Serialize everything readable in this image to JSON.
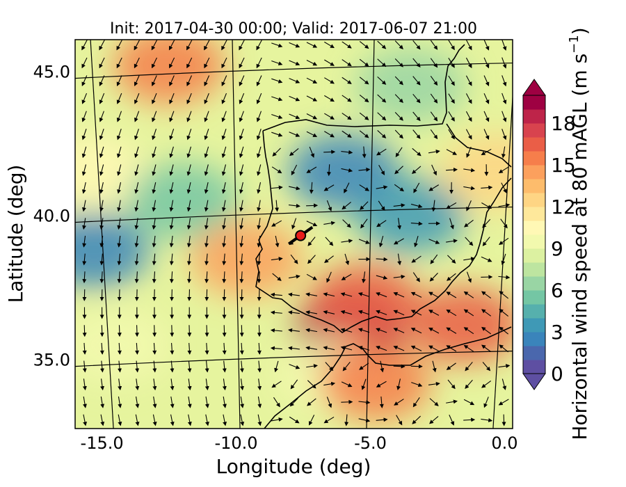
{
  "title": "Init: 2017-04-30 00:00; Valid: 2017-06-07 21:00",
  "xaxis": {
    "label": "Longitude (deg)",
    "range": [
      -16.0,
      0.3
    ],
    "ticks": [
      -15.0,
      -10.0,
      -5.0,
      0.0
    ],
    "tick_labels": [
      "-15.0",
      "-10.0",
      "-5.0",
      "0.0"
    ]
  },
  "yaxis": {
    "label": "Latitude (deg)",
    "range": [
      32.6,
      46.1
    ],
    "ticks": [
      35.0,
      40.0,
      45.0
    ],
    "tick_labels": [
      "35.0",
      "40.0",
      "45.0"
    ]
  },
  "colorbar": {
    "label_main": "Horizontal wind speed at 80 mAGL (m s",
    "label_exp": "−1",
    "label_close": ")",
    "min": 0,
    "max": 20,
    "ticks": [
      0,
      3,
      6,
      9,
      12,
      15,
      18
    ],
    "tick_labels": [
      "0",
      "3",
      "6",
      "9",
      "12",
      "15",
      "18"
    ],
    "extend": "both",
    "colors": [
      "#5e4fa2",
      "#4a67ad",
      "#3a84bb",
      "#3f99b6",
      "#56b0ad",
      "#74c6a4",
      "#99d5a4",
      "#bde5a0",
      "#dcf1a1",
      "#f2f9ae",
      "#fff8b5",
      "#fee89b",
      "#fed584",
      "#fdbc6c",
      "#fca05d",
      "#f67e4b",
      "#ea5e47",
      "#d8434e",
      "#be2449",
      "#9e0142"
    ],
    "over_color": "#9e0142",
    "under_color": "#5e4fa2"
  },
  "marker": {
    "name": "site",
    "lon": -7.6,
    "lat": 39.3,
    "color": "#e81b1b",
    "edge_color": "#000000"
  },
  "chart_data": {
    "type": "heatmap",
    "title": "Init: 2017-04-30 00:00; Valid: 2017-06-07 21:00",
    "xlabel": "Longitude (deg)",
    "ylabel": "Latitude (deg)",
    "xlim": [
      -16.0,
      0.3
    ],
    "ylim": [
      32.6,
      46.1
    ],
    "colorbar_label": "Horizontal wind speed at 80 mAGL (m s−1)",
    "color_range": [
      0,
      20
    ],
    "overlay": "wind vectors",
    "grid": "on",
    "wind_speed_regions": [
      {
        "lon": -12.5,
        "lat": 45.2,
        "speed": 15
      },
      {
        "lon": -15.5,
        "lat": 41.5,
        "speed": 10
      },
      {
        "lon": -12.0,
        "lat": 40.5,
        "speed": 5
      },
      {
        "lon": -15.3,
        "lat": 38.8,
        "speed": 2
      },
      {
        "lon": -14.5,
        "lat": 35.5,
        "speed": 9
      },
      {
        "lon": -9.6,
        "lat": 38.5,
        "speed": 14
      },
      {
        "lon": -6.0,
        "lat": 41.5,
        "speed": 2
      },
      {
        "lon": -3.5,
        "lat": 40.0,
        "speed": 3
      },
      {
        "lon": -5.8,
        "lat": 35.9,
        "speed": 19
      },
      {
        "lon": -5.2,
        "lat": 37.0,
        "speed": 16
      },
      {
        "lon": -1.5,
        "lat": 36.2,
        "speed": 16
      },
      {
        "lon": -6.5,
        "lat": 34.5,
        "speed": 9
      },
      {
        "lon": -4.8,
        "lat": 34.2,
        "speed": 15
      },
      {
        "lon": -3.5,
        "lat": 44.5,
        "speed": 6
      },
      {
        "lon": -0.3,
        "lat": 41.5,
        "speed": 12
      }
    ]
  }
}
